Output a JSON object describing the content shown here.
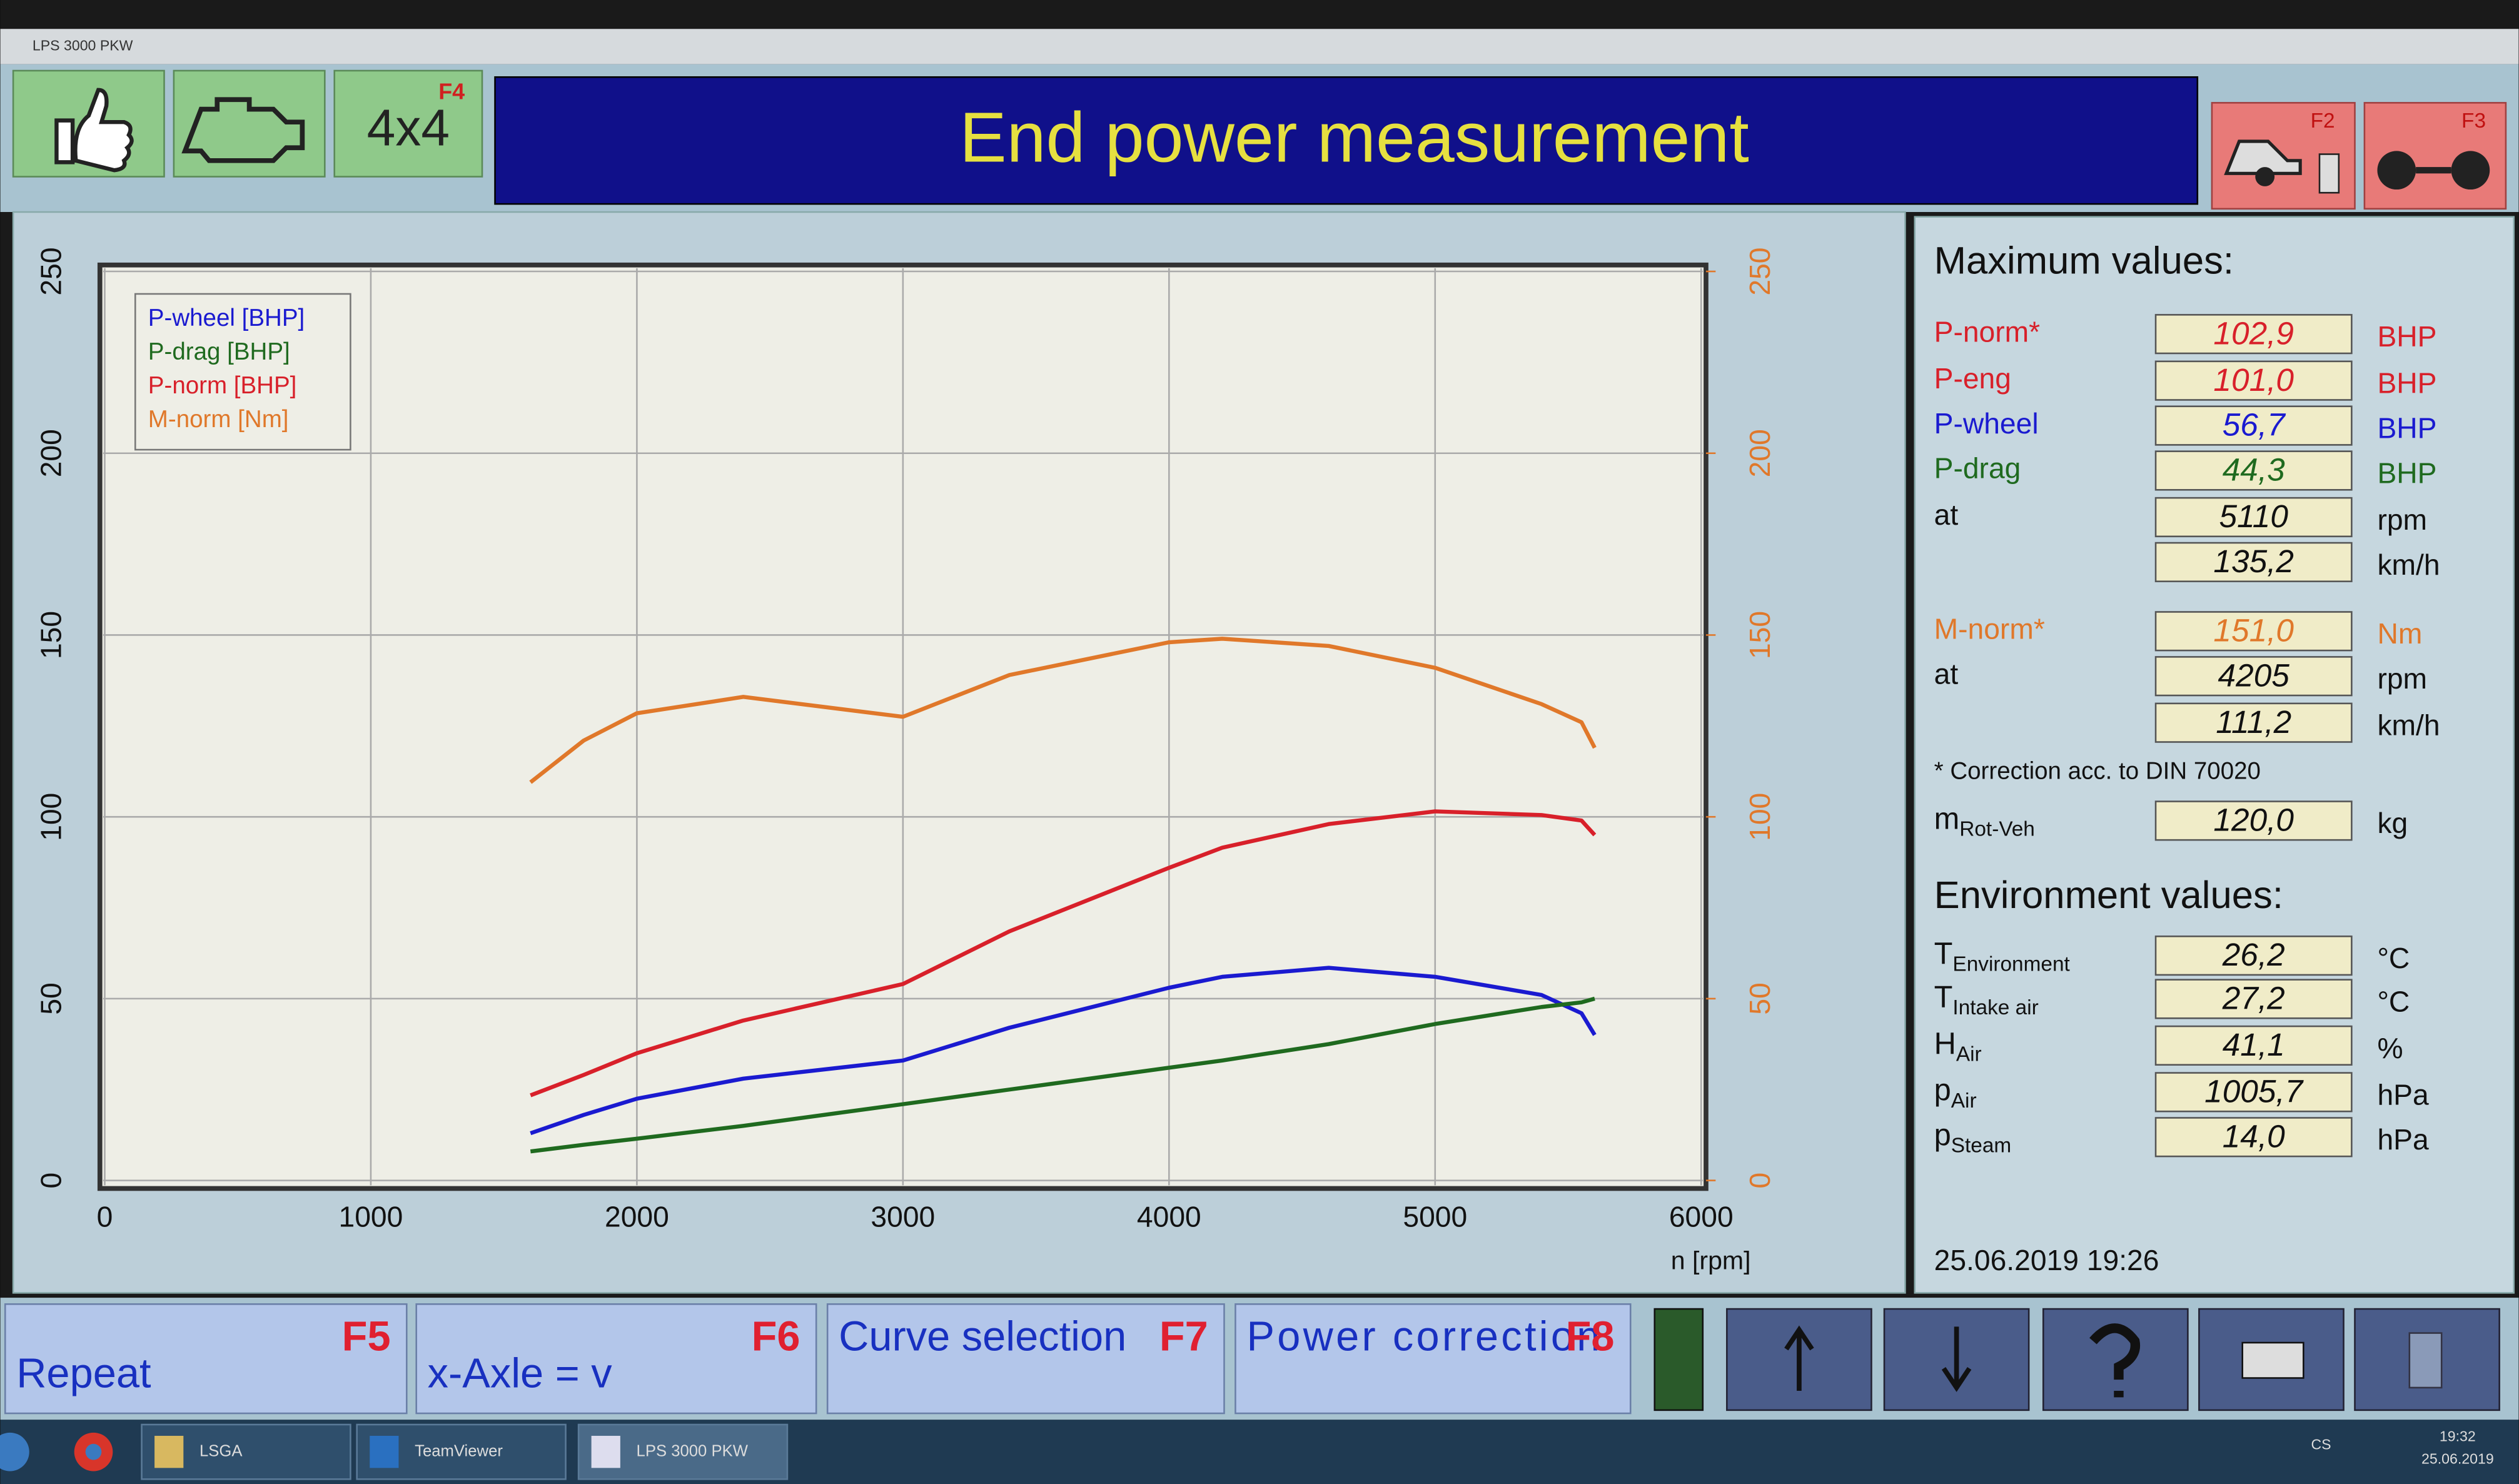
{
  "window_title": "LPS 3000 PKW",
  "header": {
    "title": "End power measurement",
    "mode": "4x4",
    "keys": [
      "F4",
      "F2",
      "F3"
    ]
  },
  "chart_data": {
    "type": "line",
    "x": [
      1600,
      1800,
      2000,
      2400,
      3000,
      3400,
      4000,
      4200,
      4600,
      5000,
      5400,
      5550,
      5600
    ],
    "series": [
      {
        "name": "P-wheel [BHP]",
        "color": "#1a1ad0",
        "values": [
          13,
          18,
          22.5,
          28,
          33,
          42,
          53,
          56,
          58.5,
          56,
          51,
          46,
          40
        ]
      },
      {
        "name": "P-drag [BHP]",
        "color": "#1f6a1f",
        "values": [
          8,
          9.8,
          11.5,
          15,
          21,
          25,
          31,
          33,
          37.5,
          43,
          47.7,
          49,
          50
        ]
      },
      {
        "name": "P-norm [BHP]",
        "color": "#d8202a",
        "values": [
          23.4,
          29,
          35,
          44,
          54,
          68.5,
          86,
          91.5,
          98,
          101.5,
          100.5,
          99,
          95
        ]
      },
      {
        "name": "M-norm [Nm]",
        "color": "#e0782a",
        "axis": "y2",
        "values": [
          109.5,
          121,
          128.5,
          133,
          127.5,
          139,
          148,
          149,
          147,
          141,
          131,
          126,
          119
        ]
      }
    ],
    "xlabel": "n [rpm]",
    "xlim": [
      0,
      6000
    ],
    "xticks": [
      0,
      1000,
      2000,
      3000,
      4000,
      5000,
      6000
    ],
    "ylim": [
      0,
      250
    ],
    "yticks": [
      0,
      50,
      100,
      150,
      200,
      250
    ],
    "y2lim": [
      0,
      250
    ],
    "y2ticks": [
      0,
      50,
      100,
      150,
      200,
      250
    ],
    "y2color": "#e0782a",
    "grid": true,
    "legend": "upper left"
  },
  "max_panel": {
    "title": "Maximum values:",
    "rows": [
      {
        "label": "P-norm*",
        "value": "102,9",
        "unit": "BHP",
        "color": "#d8202a"
      },
      {
        "label": "P-eng",
        "value": "101,0",
        "unit": "BHP",
        "color": "#d8202a"
      },
      {
        "label": "P-wheel",
        "value": "56,7",
        "unit": "BHP",
        "color": "#1a1ad0"
      },
      {
        "label": "P-drag",
        "value": "44,3",
        "unit": "BHP",
        "color": "#1f6a1f"
      },
      {
        "label": "at",
        "value": "5110",
        "unit": "rpm",
        "color": "#111111"
      },
      {
        "value": "135,2",
        "unit": "km/h",
        "color": "#111111"
      },
      {
        "label": "M-norm*",
        "value": "151,0",
        "unit": "Nm",
        "color": "#e0782a"
      },
      {
        "label": "at",
        "value": "4205",
        "unit": "rpm",
        "color": "#111111"
      },
      {
        "value": "111,2",
        "unit": "km/h",
        "color": "#111111"
      }
    ],
    "note": "* Correction acc. to DIN 70020",
    "mass": {
      "label": "m",
      "sub": "Rot-Veh",
      "value": "120,0",
      "unit": "kg"
    }
  },
  "env_panel": {
    "title": "Environment values:",
    "rows": [
      {
        "label": "T",
        "sub": "Environment",
        "value": "26,2",
        "unit": "°C"
      },
      {
        "label": "T",
        "sub": "Intake air",
        "value": "27,2",
        "unit": "°C"
      },
      {
        "label": "H",
        "sub": "Air",
        "value": "41,1",
        "unit": "%"
      },
      {
        "label": "p",
        "sub": "Air",
        "value": "1005,7",
        "unit": "hPa"
      },
      {
        "label": "p",
        "sub": "Steam",
        "value": "14,0",
        "unit": "hPa"
      }
    ]
  },
  "timestamp": "25.06.2019  19:26",
  "buttons": [
    {
      "label": "Repeat",
      "key": "F5"
    },
    {
      "label": "x-Axle = v",
      "key": "F6"
    },
    {
      "label": "Curve selection",
      "key": "F7"
    },
    {
      "label": "Power correction",
      "key": "F8"
    }
  ],
  "taskbar": {
    "items": [
      "LSGA",
      "TeamViewer",
      "LPS 3000 PKW"
    ],
    "lang": "CS",
    "time": "19:32",
    "date": "25.06.2019"
  }
}
